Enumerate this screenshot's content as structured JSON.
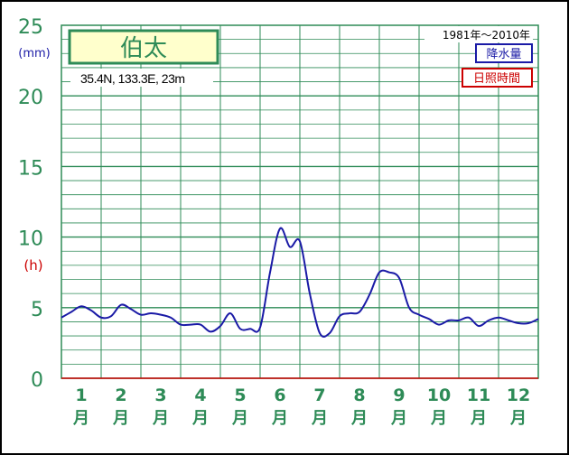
{
  "chart_data": {
    "type": "line",
    "title": "伯太",
    "location": "35.4N,  133.3E,  23m",
    "period": "1981年〜2010年",
    "legend": [
      {
        "label": "降水量",
        "color": "#1a1aa6"
      },
      {
        "label": "日照時間",
        "color": "#cc0000"
      }
    ],
    "y_unit_precip": "(mm)",
    "y_unit_sun": "(h)",
    "y_ticks": [
      "0",
      "5",
      "10",
      "15",
      "20",
      "25"
    ],
    "ylim": [
      0,
      25
    ],
    "xlim": [
      0.5,
      12.5
    ],
    "month_labels": [
      {
        "num": "1",
        "unit": "月"
      },
      {
        "num": "2",
        "unit": "月"
      },
      {
        "num": "3",
        "unit": "月"
      },
      {
        "num": "4",
        "unit": "月"
      },
      {
        "num": "5",
        "unit": "月"
      },
      {
        "num": "6",
        "unit": "月"
      },
      {
        "num": "7",
        "unit": "月"
      },
      {
        "num": "8",
        "unit": "月"
      },
      {
        "num": "9",
        "unit": "月"
      },
      {
        "num": "10",
        "unit": "月"
      },
      {
        "num": "11",
        "unit": "月"
      },
      {
        "num": "12",
        "unit": "月"
      }
    ],
    "series": [
      {
        "name": "降水量",
        "color": "#1a1aa6",
        "x": [
          0.5,
          0.75,
          1.0,
          1.25,
          1.5,
          1.75,
          2.0,
          2.25,
          2.5,
          2.75,
          3.0,
          3.25,
          3.5,
          3.75,
          4.0,
          4.25,
          4.5,
          4.75,
          5.0,
          5.25,
          5.5,
          5.75,
          6.0,
          6.25,
          6.5,
          6.75,
          7.0,
          7.25,
          7.5,
          7.75,
          8.0,
          8.25,
          8.5,
          8.75,
          9.0,
          9.25,
          9.5,
          9.75,
          10.0,
          10.25,
          10.5,
          10.75,
          11.0,
          11.25,
          11.5,
          11.75,
          12.0,
          12.25,
          12.5
        ],
        "y": [
          4.3,
          4.7,
          5.1,
          4.8,
          4.3,
          4.4,
          5.2,
          4.9,
          4.5,
          4.6,
          4.5,
          4.3,
          3.8,
          3.8,
          3.8,
          3.3,
          3.7,
          4.6,
          3.5,
          3.5,
          3.6,
          7.5,
          10.6,
          9.3,
          9.7,
          6.0,
          3.2,
          3.2,
          4.4,
          4.6,
          4.7,
          5.9,
          7.5,
          7.5,
          7.1,
          5.0,
          4.5,
          4.2,
          3.8,
          4.1,
          4.1,
          4.3,
          3.7,
          4.1,
          4.3,
          4.1,
          3.9,
          3.9,
          4.2
        ]
      }
    ]
  }
}
